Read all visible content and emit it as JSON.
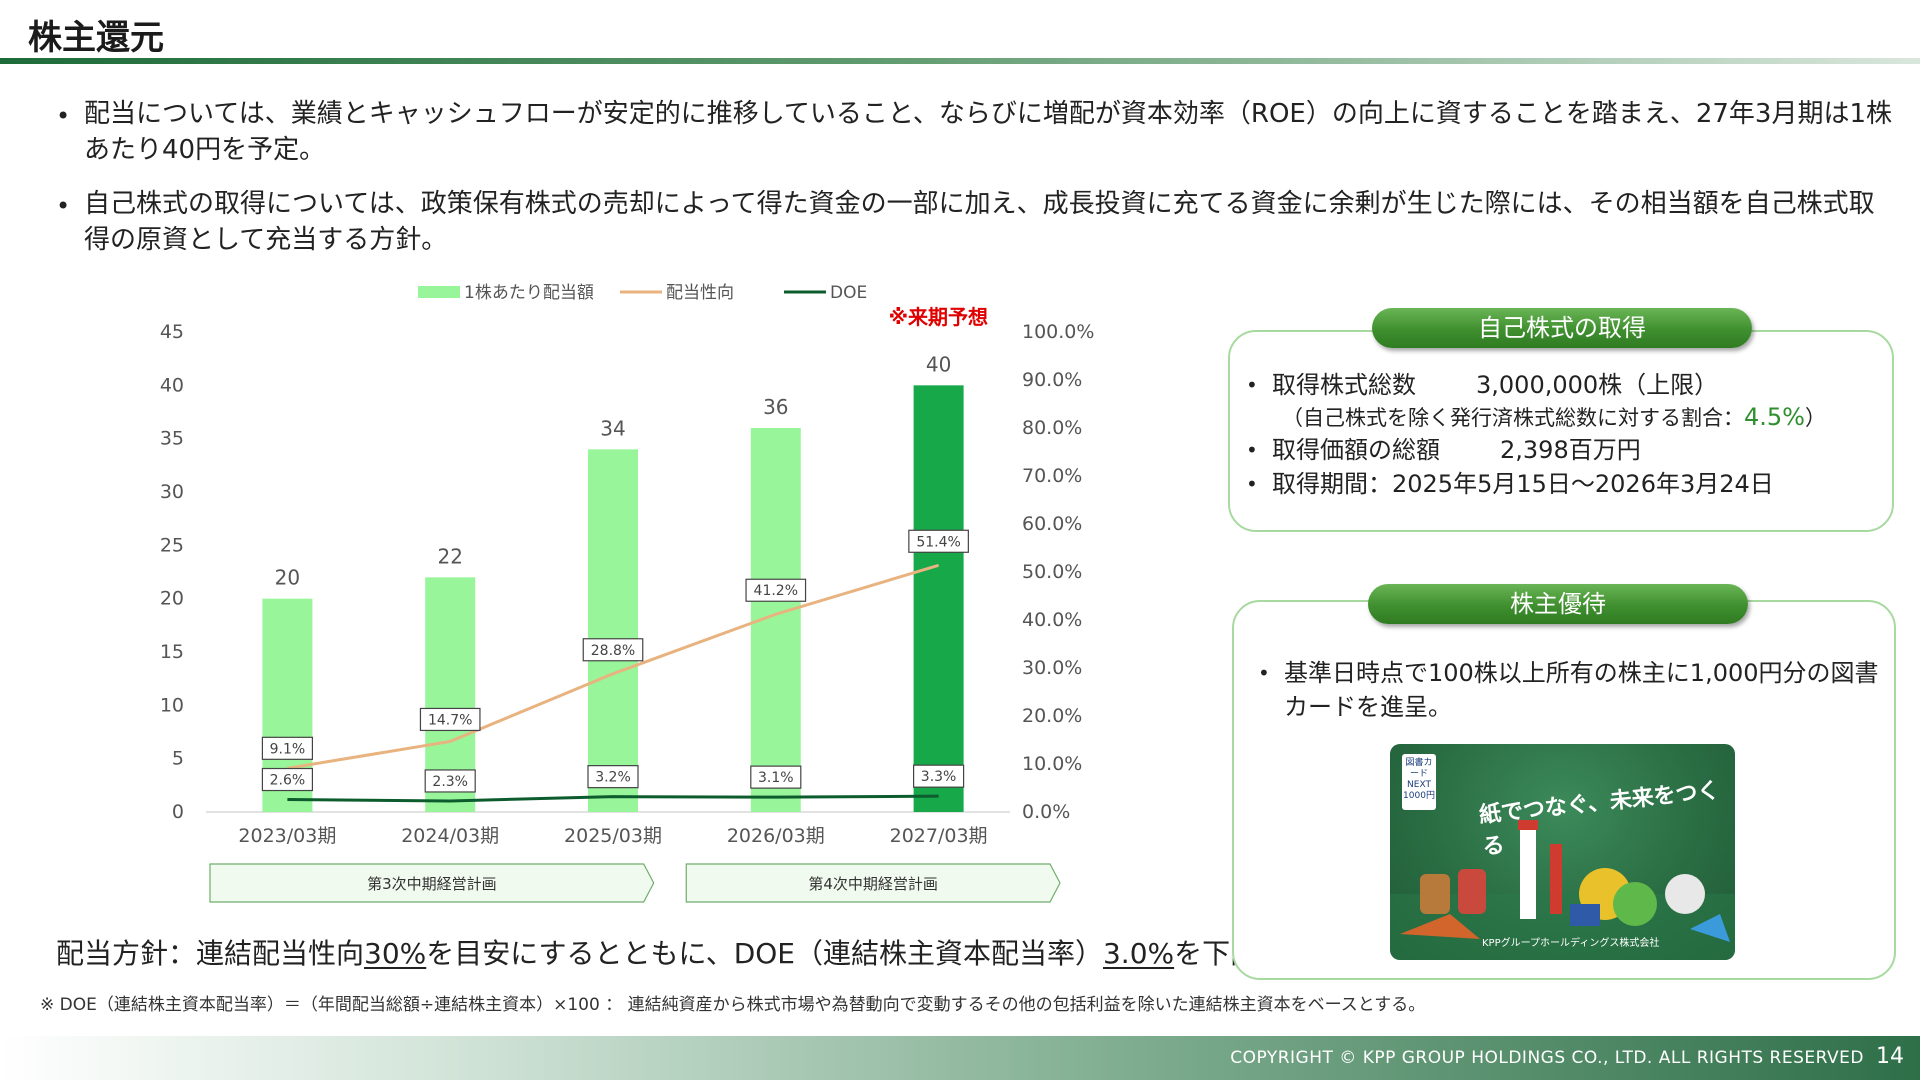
{
  "title": "株主還元",
  "bullets": [
    "配当については、業績とキャッシュフローが安定的に推移していること、ならびに増配が資本効率（ROE）の向上に資することを踏まえ、27年3月期は1株あたり40円を予定。",
    "自己株式の取得については、政策保有株式の売却によって得た資金の一部に加え、成長投資に充てる資金に余剰が生じた際には、その相当額を自己株式取得の原資として充当する方針。"
  ],
  "chart_data": {
    "type": "bar+line",
    "categories": [
      "2023/03期",
      "2024/03期",
      "2025/03期",
      "2026/03期",
      "2027/03期"
    ],
    "legend": [
      "1株あたり配当額",
      "配当性向",
      "DOE"
    ],
    "legend_position": "top",
    "bars": {
      "name": "1株あたり配当額",
      "values": [
        20,
        22,
        34,
        36,
        40
      ],
      "labels": [
        "20",
        "22",
        "34",
        "36",
        "40"
      ],
      "color": "#99f59a",
      "forecast_color": "#17a84a"
    },
    "payout": {
      "name": "配当性向",
      "values": [
        9.1,
        14.7,
        28.8,
        41.2,
        51.4
      ],
      "labels": [
        "9.1%",
        "14.7%",
        "28.8%",
        "41.2%",
        "51.4%"
      ],
      "color": "#e8b37f"
    },
    "doe": {
      "name": "DOE",
      "values": [
        2.6,
        2.3,
        3.2,
        3.1,
        3.3
      ],
      "labels": [
        "2.6%",
        "2.3%",
        "3.2%",
        "3.1%",
        "3.3%"
      ],
      "color": "#0d5c2e"
    },
    "y_left": {
      "min": 0,
      "max": 45,
      "ticks": [
        "0",
        "5",
        "10",
        "15",
        "20",
        "25",
        "30",
        "35",
        "40",
        "45"
      ]
    },
    "y_right": {
      "min": 0,
      "max": 100,
      "ticks": [
        "0.0%",
        "10.0%",
        "20.0%",
        "30.0%",
        "40.0%",
        "50.0%",
        "60.0%",
        "70.0%",
        "80.0%",
        "90.0%",
        "100.0%"
      ]
    },
    "forecast_note": "※来期予想",
    "forecast_color": "#e00000",
    "plans": [
      "第3次中期経営計画",
      "第4次中期経営計画"
    ]
  },
  "policy": {
    "prefix": "配当方針：連結配当性向",
    "val1": "30%",
    "mid": "を目安にするとともに、DOE（連結株主資本配当率）",
    "val2": "3.0%",
    "suffix": "を下限"
  },
  "footnote": "※ DOE（連結株主資本配当率）＝（年間配当総額÷連結株主資本）×100 ： 連結純資産から株式市場や為替動向で変動するその他の包括利益を除いた連結株主資本をベースとする。",
  "buyback": {
    "heading": "自己株式の取得",
    "shares_label": "取得株式総数",
    "shares_value": "3,000,000株（上限）",
    "ratio_text": "（自己株式を除く発行済株式総数に対する割合：",
    "ratio_value": "4.5%",
    "ratio_close": "）",
    "amount_label": "取得価額の総額",
    "amount_value": "2,398百万円",
    "period": "取得期間：2025年5月15日～2026年3月24日"
  },
  "benefit": {
    "heading": "株主優待",
    "text": "基準日時点で100株以上所有の株主に1,000円分の図書カードを進呈。",
    "card_logo": "図書カードNEXT 1000円",
    "card_slogan": "紙でつなぐ、未来をつくる",
    "card_corp": "KPPグループホールディングス株式会社"
  },
  "footer": {
    "copyright": "COPYRIGHT © KPP GROUP HOLDINGS CO., LTD. ALL RIGHTS RESERVED",
    "page": "14"
  }
}
